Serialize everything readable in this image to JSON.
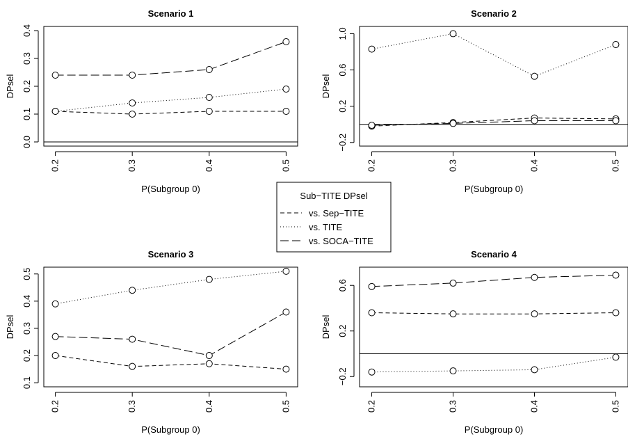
{
  "legend": {
    "title": "Sub−TITE DPsel",
    "entries": [
      {
        "label": "vs. Sep−TITE",
        "style": "dashed"
      },
      {
        "label": "vs. TITE",
        "style": "dotted"
      },
      {
        "label": "vs. SOCA−TITE",
        "style": "longdash"
      }
    ]
  },
  "chart_data": [
    {
      "type": "line",
      "title": "Scenario 1",
      "xlabel": "P(Subgroup 0)",
      "ylabel": "DPsel",
      "x": [
        0.2,
        0.3,
        0.4,
        0.5
      ],
      "xticks": [
        "0.2",
        "0.3",
        "0.4",
        "0.5"
      ],
      "ylim": [
        -0.015,
        0.415
      ],
      "yticks": [
        0.0,
        0.1,
        0.2,
        0.3,
        0.4
      ],
      "yticklabels": [
        "0.0",
        "0.1",
        "0.2",
        "0.3",
        "0.4"
      ],
      "reference_line": 0,
      "series": [
        {
          "name": "vs. Sep−TITE",
          "style": "dashed",
          "values": [
            0.11,
            0.1,
            0.11,
            0.11
          ]
        },
        {
          "name": "vs. TITE",
          "style": "dotted",
          "values": [
            0.11,
            0.14,
            0.16,
            0.19
          ]
        },
        {
          "name": "vs. SOCA−TITE",
          "style": "longdash",
          "values": [
            0.24,
            0.24,
            0.26,
            0.36
          ]
        }
      ]
    },
    {
      "type": "line",
      "title": "Scenario 2",
      "xlabel": "P(Subgroup 0)",
      "ylabel": "DPsel",
      "x": [
        0.2,
        0.3,
        0.4,
        0.5
      ],
      "xticks": [
        "0.2",
        "0.3",
        "0.4",
        "0.5"
      ],
      "ylim": [
        -0.24,
        1.08
      ],
      "yticks": [
        -0.2,
        0.2,
        0.6,
        1.0
      ],
      "yticklabels": [
        "−0.2",
        "0.2",
        "0.6",
        "1.0"
      ],
      "reference_line": 0,
      "series": [
        {
          "name": "vs. Sep−TITE",
          "style": "dashed",
          "values": [
            -0.02,
            0.02,
            0.07,
            0.06
          ]
        },
        {
          "name": "vs. TITE",
          "style": "dotted",
          "values": [
            0.83,
            1.0,
            0.53,
            0.88
          ]
        },
        {
          "name": "vs. SOCA−TITE",
          "style": "longdash",
          "values": [
            -0.01,
            0.01,
            0.04,
            0.04
          ]
        }
      ]
    },
    {
      "type": "line",
      "title": "Scenario 3",
      "xlabel": "P(Subgroup 0)",
      "ylabel": "DPsel",
      "x": [
        0.2,
        0.3,
        0.4,
        0.5
      ],
      "xticks": [
        "0.2",
        "0.3",
        "0.4",
        "0.5"
      ],
      "ylim": [
        0.085,
        0.525
      ],
      "yticks": [
        0.1,
        0.2,
        0.3,
        0.4,
        0.5
      ],
      "yticklabels": [
        "0.1",
        "0.2",
        "0.3",
        "0.4",
        "0.5"
      ],
      "reference_line": null,
      "series": [
        {
          "name": "vs. Sep−TITE",
          "style": "dashed",
          "values": [
            0.2,
            0.16,
            0.17,
            0.15
          ]
        },
        {
          "name": "vs. TITE",
          "style": "dotted",
          "values": [
            0.39,
            0.44,
            0.48,
            0.51
          ]
        },
        {
          "name": "vs. SOCA−TITE",
          "style": "longdash",
          "values": [
            0.27,
            0.26,
            0.2,
            0.36
          ]
        }
      ]
    },
    {
      "type": "line",
      "title": "Scenario 4",
      "xlabel": "P(Subgroup 0)",
      "ylabel": "DPsel",
      "x": [
        0.2,
        0.3,
        0.4,
        0.5
      ],
      "xticks": [
        "0.2",
        "0.3",
        "0.4",
        "0.5"
      ],
      "ylim": [
        -0.29,
        0.76
      ],
      "yticks": [
        -0.2,
        0.2,
        0.6
      ],
      "yticklabels": [
        "−0.2",
        "0.2",
        "0.6"
      ],
      "reference_line": 0,
      "series": [
        {
          "name": "vs. Sep−TITE",
          "style": "dashed",
          "values": [
            0.36,
            0.35,
            0.35,
            0.36
          ]
        },
        {
          "name": "vs. TITE",
          "style": "dotted",
          "values": [
            -0.16,
            -0.15,
            -0.14,
            -0.03
          ]
        },
        {
          "name": "vs. SOCA−TITE",
          "style": "longdash",
          "values": [
            0.59,
            0.62,
            0.67,
            0.69
          ]
        }
      ]
    }
  ]
}
